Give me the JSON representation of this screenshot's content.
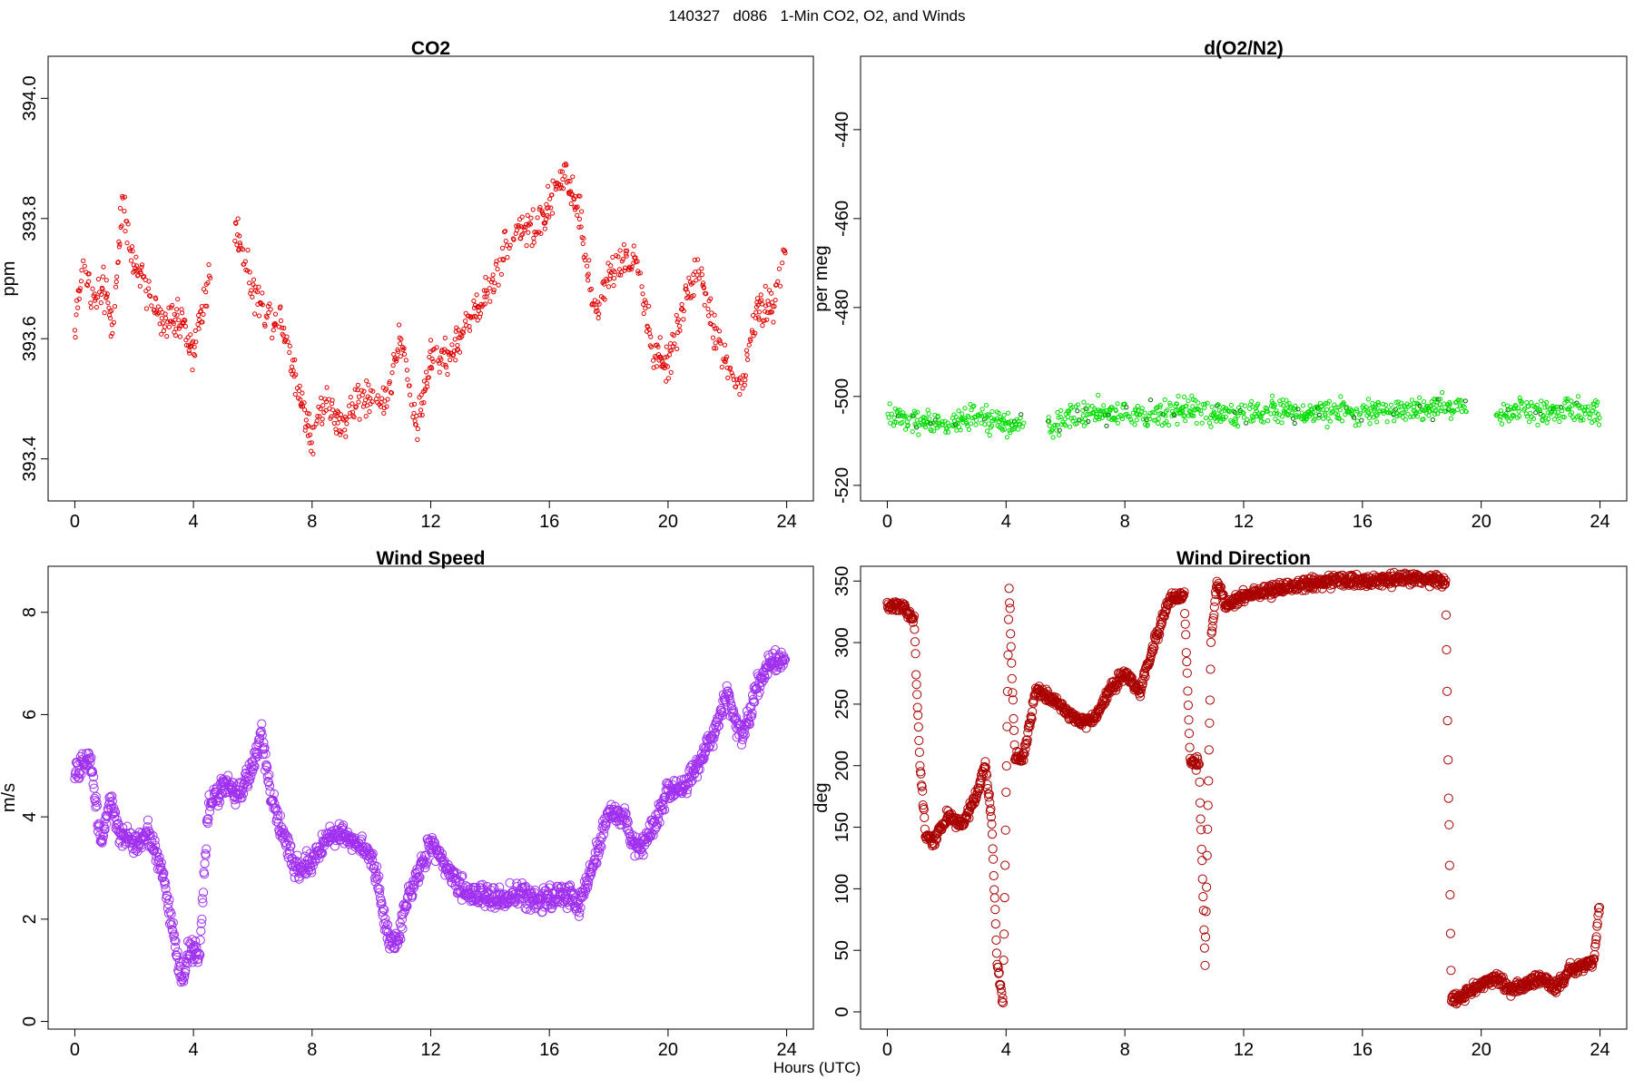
{
  "figure": {
    "title": "140327   d086   1-Min CO2, O2, and Winds",
    "xlabel": "Hours (UTC)"
  },
  "chart_data": [
    {
      "id": "co2",
      "type": "scatter",
      "title": "CO2",
      "xlabel": "",
      "ylabel": "ppm",
      "xlim": [
        -0.9,
        24.9
      ],
      "ylim": [
        393.33,
        394.07
      ],
      "xticks": [
        0,
        4,
        8,
        12,
        16,
        20,
        24
      ],
      "yticks": [
        393.4,
        393.6,
        393.8,
        394.0
      ],
      "ytick_labels": [
        "393.4",
        "393.6",
        "393.8",
        "394.0"
      ],
      "color": "#e00000",
      "marker": "small-open-circle",
      "gaps": [
        [
          4.6,
          5.4
        ]
      ],
      "series_outline": {
        "x": [
          0,
          0.3,
          0.6,
          1.0,
          1.3,
          1.6,
          2.0,
          2.5,
          3.0,
          3.5,
          4.0,
          4.5,
          5.5,
          6.0,
          6.5,
          7.0,
          7.5,
          8.0,
          8.5,
          9.0,
          9.5,
          10.0,
          10.5,
          11.0,
          11.5,
          12.0,
          12.5,
          13.0,
          13.5,
          14.0,
          14.5,
          15.0,
          15.5,
          16.0,
          16.5,
          17.0,
          17.5,
          18.0,
          18.5,
          19.0,
          19.5,
          20.0,
          20.5,
          21.0,
          21.5,
          22.0,
          22.5,
          23.0,
          23.5,
          23.9
        ],
        "y": [
          393.62,
          393.73,
          393.66,
          393.68,
          393.62,
          393.84,
          393.72,
          393.68,
          393.62,
          393.64,
          393.58,
          393.7,
          393.78,
          393.68,
          393.64,
          393.63,
          393.52,
          393.44,
          393.5,
          393.45,
          393.5,
          393.5,
          393.5,
          393.6,
          393.45,
          393.57,
          393.57,
          393.6,
          393.65,
          393.68,
          393.75,
          393.79,
          393.78,
          393.82,
          393.88,
          393.82,
          393.64,
          393.7,
          393.73,
          393.72,
          393.57,
          393.56,
          393.65,
          393.72,
          393.62,
          393.55,
          393.52,
          393.65,
          393.66,
          393.74
        ]
      }
    },
    {
      "id": "o2n2",
      "type": "scatter",
      "title": "d(O2/N2)",
      "xlabel": "",
      "ylabel": "per meg",
      "xlim": [
        -0.9,
        24.9
      ],
      "ylim": [
        -523.5,
        -423.5
      ],
      "xticks": [
        0,
        4,
        8,
        12,
        16,
        20,
        24
      ],
      "yticks": [
        -520,
        -500,
        -480,
        -460,
        -440
      ],
      "ytick_labels": [
        "-520",
        "-500",
        "-480",
        "-460",
        "-440"
      ],
      "color": "#00dd00",
      "marker": "small-open-circle",
      "gaps": [
        [
          4.6,
          5.4
        ],
        [
          19.5,
          20.5
        ]
      ],
      "series_outline": {
        "x": [
          0,
          1,
          2,
          3,
          4,
          5.5,
          6,
          7,
          8,
          9,
          10,
          11,
          12,
          13,
          14,
          15,
          16,
          17,
          18,
          19,
          20.5,
          21,
          22,
          23,
          24
        ],
        "y": [
          -504,
          -505,
          -506,
          -505,
          -506,
          -507,
          -505,
          -503,
          -504,
          -504,
          -503,
          -504,
          -504,
          -503,
          -504,
          -503,
          -504,
          -503,
          -503,
          -502,
          -503,
          -504,
          -503,
          -503,
          -504
        ]
      }
    },
    {
      "id": "wspd",
      "type": "scatter",
      "title": "Wind Speed",
      "xlabel": "",
      "ylabel": "m/s",
      "xlim": [
        -0.9,
        24.9
      ],
      "ylim": [
        -0.15,
        8.9
      ],
      "xticks": [
        0,
        4,
        8,
        12,
        16,
        20,
        24
      ],
      "yticks": [
        0,
        2,
        4,
        6,
        8
      ],
      "ytick_labels": [
        "0",
        "2",
        "4",
        "6",
        "8"
      ],
      "color": "#a030f0",
      "marker": "open-circle",
      "gaps": [],
      "series_outline": {
        "x": [
          0,
          0.5,
          0.9,
          1.2,
          1.5,
          2.0,
          2.5,
          3.0,
          3.3,
          3.6,
          3.9,
          4.2,
          4.5,
          5.0,
          5.5,
          6.0,
          6.3,
          6.6,
          7.0,
          7.5,
          8.0,
          8.5,
          9.0,
          9.5,
          10.0,
          10.3,
          10.6,
          10.9,
          11.2,
          11.5,
          12.0,
          12.5,
          13.0,
          13.5,
          14.0,
          14.5,
          15.0,
          15.5,
          16.0,
          16.5,
          17.0,
          17.5,
          18.0,
          18.5,
          19.0,
          19.5,
          20.0,
          20.5,
          21.0,
          21.5,
          22.0,
          22.5,
          23.0,
          23.5,
          23.9
        ],
        "y": [
          4.8,
          5.2,
          3.5,
          4.4,
          3.6,
          3.5,
          3.7,
          2.8,
          1.8,
          0.8,
          1.5,
          1.2,
          4.2,
          4.6,
          4.4,
          5.0,
          5.6,
          4.5,
          3.6,
          3.0,
          3.1,
          3.6,
          3.7,
          3.5,
          3.2,
          2.5,
          1.5,
          1.6,
          2.4,
          2.8,
          3.5,
          3.0,
          2.6,
          2.5,
          2.4,
          2.4,
          2.5,
          2.4,
          2.4,
          2.5,
          2.3,
          3.1,
          4.1,
          4.0,
          3.3,
          3.8,
          4.5,
          4.6,
          5.0,
          5.6,
          6.4,
          5.5,
          6.5,
          7.1,
          7.0
        ]
      }
    },
    {
      "id": "wdir",
      "type": "scatter",
      "title": "Wind Direction",
      "xlabel": "",
      "ylabel": "deg",
      "xlim": [
        -0.9,
        24.9
      ],
      "ylim": [
        -14,
        362
      ],
      "xticks": [
        0,
        4,
        8,
        12,
        16,
        20,
        24
      ],
      "yticks": [
        0,
        50,
        100,
        150,
        200,
        250,
        300,
        350
      ],
      "ytick_labels": [
        "0",
        "50",
        "100",
        "150",
        "200",
        "250",
        "300",
        "350"
      ],
      "color": "#aa0000",
      "marker": "open-circle",
      "gaps": [],
      "series_outline": {
        "x": [
          0,
          0.5,
          0.9,
          1.1,
          1.3,
          1.6,
          2.0,
          2.5,
          3.0,
          3.3,
          3.5,
          3.7,
          3.9,
          4.1,
          4.3,
          4.6,
          5.0,
          5.5,
          6.0,
          6.5,
          7.0,
          7.5,
          8.0,
          8.5,
          9.0,
          9.5,
          10.0,
          10.2,
          10.5,
          10.7,
          10.9,
          11.1,
          11.4,
          11.7,
          12.0,
          13.0,
          14.0,
          15.0,
          16.0,
          17.0,
          18.0,
          18.8,
          19.0,
          19.5,
          20.0,
          20.5,
          21.0,
          21.5,
          22.0,
          22.5,
          23.0,
          23.5,
          23.8,
          23.95
        ],
        "y": [
          330,
          330,
          318,
          200,
          142,
          140,
          160,
          152,
          175,
          200,
          160,
          40,
          8,
          345,
          205,
          208,
          262,
          255,
          245,
          235,
          238,
          262,
          275,
          260,
          300,
          335,
          338,
          205,
          200,
          40,
          300,
          350,
          330,
          335,
          338,
          343,
          347,
          350,
          350,
          351,
          352,
          350,
          8,
          15,
          22,
          28,
          18,
          22,
          28,
          20,
          35,
          38,
          42,
          82
        ]
      }
    }
  ]
}
